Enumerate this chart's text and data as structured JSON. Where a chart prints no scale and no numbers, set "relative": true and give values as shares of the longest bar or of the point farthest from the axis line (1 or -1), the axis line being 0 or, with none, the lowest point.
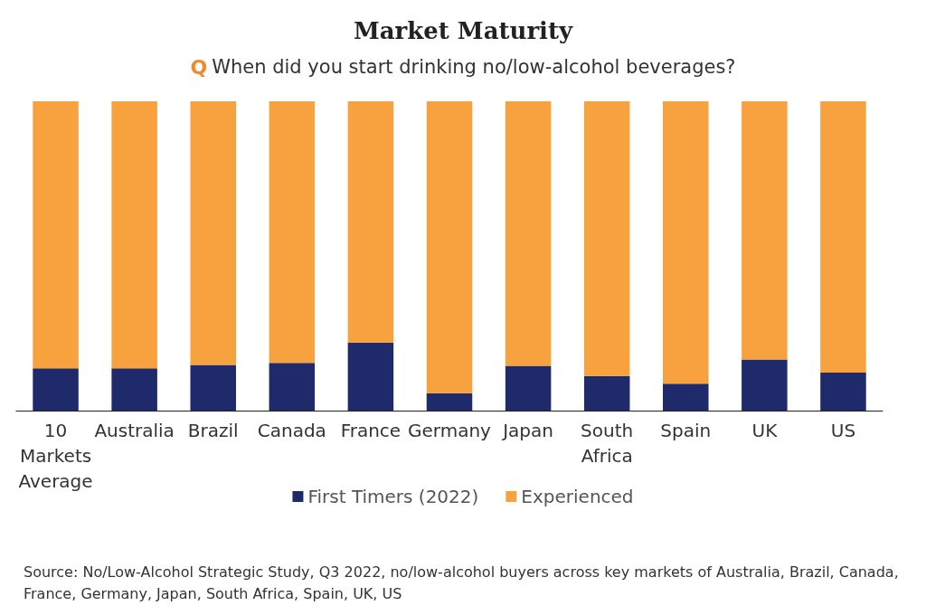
{
  "chart_data": {
    "type": "bar",
    "title": "Market Maturity",
    "subtitle": "Q When did you start drinking no/low-alcohol beverages?",
    "categories": [
      "10 Markets Average",
      "Australia",
      "Brazil",
      "Canada",
      "France",
      "Germany",
      "Japan",
      "South Africa",
      "Spain",
      "UK",
      "US"
    ],
    "relative": true,
    "stacked": true,
    "series": [
      {
        "name": "First Timers (2022)",
        "color": "#1f2a6b",
        "values": [
          0.137,
          0.137,
          0.148,
          0.154,
          0.22,
          0.056,
          0.145,
          0.112,
          0.087,
          0.165,
          0.123
        ]
      },
      {
        "name": "Experienced",
        "color": "#f7a13f",
        "values": [
          0.863,
          0.863,
          0.852,
          0.846,
          0.78,
          0.944,
          0.855,
          0.888,
          0.913,
          0.835,
          0.877
        ]
      }
    ],
    "legend": "bottom",
    "annotations": [
      "Source: No/Low-Alcohol Strategic Study, Q3 2022, no/low-alcohol buyers across key markets of Australia, Brazil, Canada, France, Germany, Japan, South Africa, Spain, UK, US"
    ]
  }
}
